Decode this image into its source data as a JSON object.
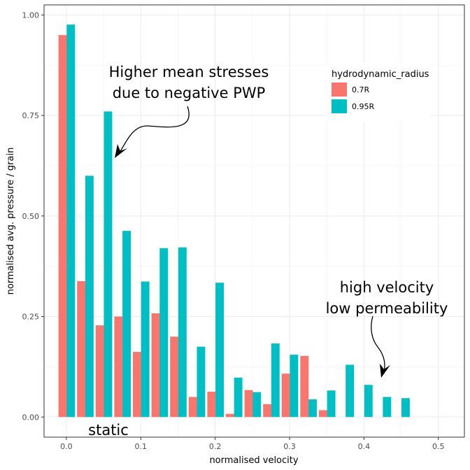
{
  "chart_data": {
    "type": "bar",
    "xlabel": "normalised velocity",
    "ylabel": "normalised avg. pressure / grain",
    "xlim": [
      -0.03,
      0.535
    ],
    "ylim": [
      -0.05,
      1.025
    ],
    "xticks": [
      {
        "value": 0.0,
        "label": "0.0"
      },
      {
        "value": 0.1,
        "label": "0.1"
      },
      {
        "value": 0.2,
        "label": "0.2"
      },
      {
        "value": 0.3,
        "label": "0.3"
      },
      {
        "value": 0.4,
        "label": "0.4"
      },
      {
        "value": 0.5,
        "label": "0.5"
      }
    ],
    "yticks": [
      {
        "value": 0.0,
        "label": "0.00"
      },
      {
        "value": 0.25,
        "label": "0.25"
      },
      {
        "value": 0.5,
        "label": "0.50"
      },
      {
        "value": 0.75,
        "label": "0.75"
      },
      {
        "value": 1.0,
        "label": "1.00"
      }
    ],
    "grid": true,
    "legend": {
      "title": "hydrodynamic_radius",
      "position": "top-right",
      "entries": [
        {
          "label": "0.7R",
          "color": "#F8766D"
        },
        {
          "label": "0.95R",
          "color": "#00BFC4"
        }
      ]
    },
    "bar_half_width": 0.0056,
    "series": [
      {
        "name": "0.7R",
        "color": "#F8766D",
        "points": [
          {
            "x": -0.005,
            "y": 0.95
          },
          {
            "x": 0.02,
            "y": 0.338
          },
          {
            "x": 0.045,
            "y": 0.228
          },
          {
            "x": 0.07,
            "y": 0.25
          },
          {
            "x": 0.095,
            "y": 0.162
          },
          {
            "x": 0.12,
            "y": 0.258
          },
          {
            "x": 0.145,
            "y": 0.2
          },
          {
            "x": 0.17,
            "y": 0.05
          },
          {
            "x": 0.195,
            "y": 0.063
          },
          {
            "x": 0.22,
            "y": 0.008
          },
          {
            "x": 0.245,
            "y": 0.067
          },
          {
            "x": 0.27,
            "y": 0.032
          },
          {
            "x": 0.295,
            "y": 0.108
          },
          {
            "x": 0.32,
            "y": 0.152
          },
          {
            "x": 0.345,
            "y": 0.017
          }
        ]
      },
      {
        "name": "0.95R",
        "color": "#00BFC4",
        "points": [
          {
            "x": 0.006,
            "y": 0.976
          },
          {
            "x": 0.031,
            "y": 0.6
          },
          {
            "x": 0.056,
            "y": 0.76
          },
          {
            "x": 0.081,
            "y": 0.463
          },
          {
            "x": 0.106,
            "y": 0.337
          },
          {
            "x": 0.131,
            "y": 0.42
          },
          {
            "x": 0.156,
            "y": 0.422
          },
          {
            "x": 0.181,
            "y": 0.175
          },
          {
            "x": 0.206,
            "y": 0.334
          },
          {
            "x": 0.231,
            "y": 0.098
          },
          {
            "x": 0.256,
            "y": 0.062
          },
          {
            "x": 0.281,
            "y": 0.183
          },
          {
            "x": 0.306,
            "y": 0.155
          },
          {
            "x": 0.331,
            "y": 0.044
          },
          {
            "x": 0.356,
            "y": 0.066
          },
          {
            "x": 0.381,
            "y": 0.13
          },
          {
            "x": 0.406,
            "y": 0.08
          },
          {
            "x": 0.431,
            "y": 0.05
          },
          {
            "x": 0.456,
            "y": 0.047
          }
        ]
      }
    ],
    "annotations": [
      {
        "name": "annotation-negative-pwp",
        "lines": [
          "Higher mean stresses",
          "due to negative PWP"
        ]
      },
      {
        "name": "annotation-high-velocity",
        "lines": [
          "high velocity",
          "low permeability"
        ]
      },
      {
        "name": "annotation-static",
        "lines": [
          "static"
        ]
      }
    ]
  }
}
